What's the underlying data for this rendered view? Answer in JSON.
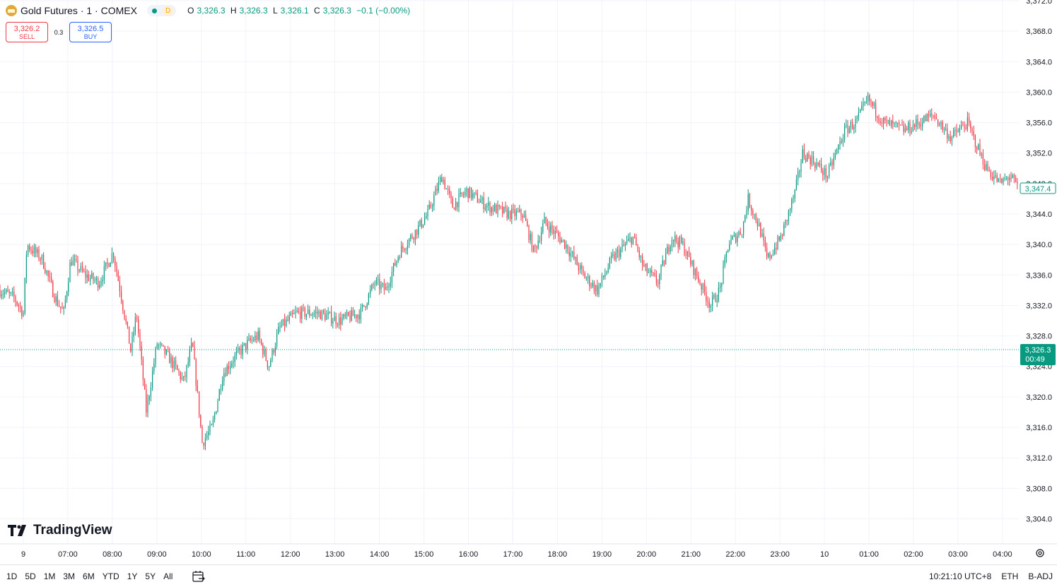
{
  "legend": {
    "symbol": "Gold Futures · 1 · COMEX",
    "badge": "D",
    "open_label": "O",
    "open": "3,326.3",
    "high_label": "H",
    "high": "3,326.3",
    "low_label": "L",
    "low": "3,326.1",
    "close_label": "C",
    "close": "3,326.3",
    "change": "−0.1 (−0.00%)"
  },
  "trade": {
    "sell_price": "3,326.2",
    "sell_label": "SELL",
    "spread": "0.3",
    "buy_price": "3,326.5",
    "buy_label": "BUY"
  },
  "brand": "TradingView",
  "current_price_tag": {
    "price": "3,326.3",
    "countdown": "00:49"
  },
  "last_price_label": "3,347.4",
  "ranges": [
    "1D",
    "5D",
    "1M",
    "3M",
    "6M",
    "YTD",
    "1Y",
    "5Y",
    "All"
  ],
  "bottom": {
    "time": "10:21:10 UTC+8",
    "session": "ETH",
    "adjustment": "B-ADJ"
  },
  "colors": {
    "up": "#089981",
    "down": "#f23645",
    "grid": "#f0f3fa"
  },
  "chart_data": {
    "type": "candlestick",
    "title": "Gold Futures · 1 · COMEX",
    "ylim": [
      3302,
      3372
    ],
    "y_ticks": [
      3372,
      3368,
      3364,
      3360,
      3356,
      3352,
      3348,
      3344,
      3340,
      3336,
      3332,
      3328,
      3324,
      3320,
      3316,
      3312,
      3308,
      3304
    ],
    "y_tick_labels": [
      "3,372.0",
      "3,368.0",
      "3,364.0",
      "3,360.0",
      "3,356.0",
      "3,352.0",
      "3,348.0",
      "3,344.0",
      "3,340.0",
      "3,336.0",
      "3,332.0",
      "3,328.0",
      "3,324.0",
      "3,320.0",
      "3,316.0",
      "3,312.0",
      "3,308.0",
      "3,304.0"
    ],
    "x_ticks": [
      "9",
      "07:00",
      "08:00",
      "09:00",
      "10:00",
      "11:00",
      "12:00",
      "13:00",
      "14:00",
      "15:00",
      "16:00",
      "17:00",
      "18:00",
      "19:00",
      "20:00",
      "21:00",
      "22:00",
      "23:00",
      "10",
      "01:00",
      "02:00",
      "03:00",
      "04:00"
    ],
    "price_path": [
      [
        0,
        3334
      ],
      [
        20,
        3333
      ],
      [
        33,
        3331
      ],
      [
        38,
        3340
      ],
      [
        60,
        3338
      ],
      [
        78,
        3333
      ],
      [
        90,
        3331
      ],
      [
        100,
        3338
      ],
      [
        120,
        3336
      ],
      [
        140,
        3335
      ],
      [
        160,
        3339
      ],
      [
        170,
        3334
      ],
      [
        185,
        3326
      ],
      [
        193,
        3331
      ],
      [
        207,
        3318
      ],
      [
        222,
        3327
      ],
      [
        240,
        3325
      ],
      [
        260,
        3322
      ],
      [
        272,
        3327
      ],
      [
        286,
        3314
      ],
      [
        300,
        3316
      ],
      [
        315,
        3323
      ],
      [
        330,
        3325
      ],
      [
        350,
        3327
      ],
      [
        365,
        3328
      ],
      [
        380,
        3324
      ],
      [
        395,
        3329
      ],
      [
        420,
        3331
      ],
      [
        450,
        3331
      ],
      [
        480,
        3330
      ],
      [
        510,
        3331
      ],
      [
        530,
        3335
      ],
      [
        545,
        3334
      ],
      [
        565,
        3339
      ],
      [
        590,
        3342
      ],
      [
        605,
        3344
      ],
      [
        625,
        3349
      ],
      [
        640,
        3345
      ],
      [
        660,
        3347
      ],
      [
        690,
        3345
      ],
      [
        720,
        3344
      ],
      [
        740,
        3344
      ],
      [
        755,
        3339
      ],
      [
        770,
        3343
      ],
      [
        800,
        3340
      ],
      [
        825,
        3336
      ],
      [
        845,
        3334
      ],
      [
        865,
        3338
      ],
      [
        895,
        3341
      ],
      [
        910,
        3337
      ],
      [
        930,
        3335
      ],
      [
        950,
        3341
      ],
      [
        965,
        3340
      ],
      [
        990,
        3335
      ],
      [
        1005,
        3332
      ],
      [
        1018,
        3334
      ],
      [
        1030,
        3340
      ],
      [
        1050,
        3342
      ],
      [
        1058,
        3346
      ],
      [
        1075,
        3342
      ],
      [
        1085,
        3338
      ],
      [
        1105,
        3341
      ],
      [
        1125,
        3347
      ],
      [
        1135,
        3352
      ],
      [
        1150,
        3351
      ],
      [
        1170,
        3349
      ],
      [
        1195,
        3355
      ],
      [
        1210,
        3356
      ],
      [
        1228,
        3359
      ],
      [
        1250,
        3356
      ],
      [
        1280,
        3355
      ],
      [
        1300,
        3356
      ],
      [
        1320,
        3357
      ],
      [
        1345,
        3354
      ],
      [
        1368,
        3356
      ],
      [
        1395,
        3350
      ],
      [
        1415,
        3348
      ],
      [
        1428,
        3349
      ],
      [
        1440,
        3347.4
      ]
    ]
  }
}
